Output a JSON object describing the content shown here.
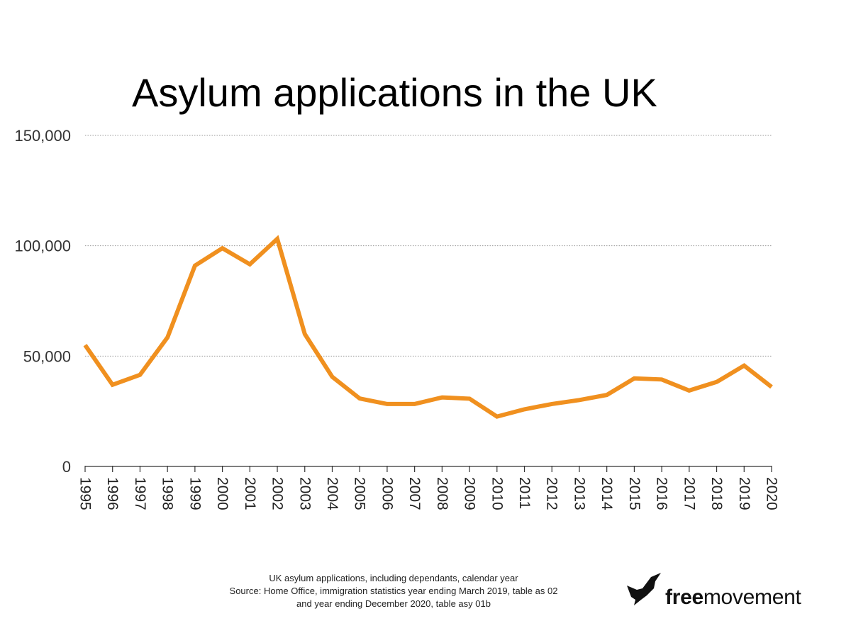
{
  "chart_data": {
    "type": "line",
    "title": "Asylum applications in the UK",
    "xlabel": "",
    "ylabel": "",
    "x": [
      "1995",
      "1996",
      "1997",
      "1998",
      "1999",
      "2000",
      "2001",
      "2002",
      "2003",
      "2004",
      "2005",
      "2006",
      "2007",
      "2008",
      "2009",
      "2010",
      "2011",
      "2012",
      "2013",
      "2014",
      "2015",
      "2016",
      "2017",
      "2018",
      "2019",
      "2020"
    ],
    "series": [
      {
        "values": [
          55000,
          37000,
          41500,
          58500,
          91000,
          98900,
          91600,
          103100,
          60000,
          40600,
          30800,
          28300,
          28300,
          31300,
          30700,
          22600,
          25900,
          28300,
          30100,
          32400,
          39900,
          39400,
          34400,
          38300,
          45700,
          36000
        ],
        "color": "#f0901f"
      }
    ],
    "ylim": [
      0,
      150000
    ],
    "yticks": [
      0,
      50000,
      100000,
      150000
    ],
    "ytick_labels": [
      "0",
      "50,000",
      "100,000",
      "150,000"
    ],
    "grid": true,
    "grid_style": "dotted-horizontal",
    "legend": "none"
  },
  "footnote": {
    "line1": "UK asylum applications, including dependants, calendar year",
    "line2": "Source: Home Office, immigration statistics year ending March 2019, table as 02",
    "line3": "and year ending December 2020, table asy 01b"
  },
  "logo": {
    "bold_part": "free",
    "regular_part": "movement",
    "icon": "flying-bird-icon"
  }
}
